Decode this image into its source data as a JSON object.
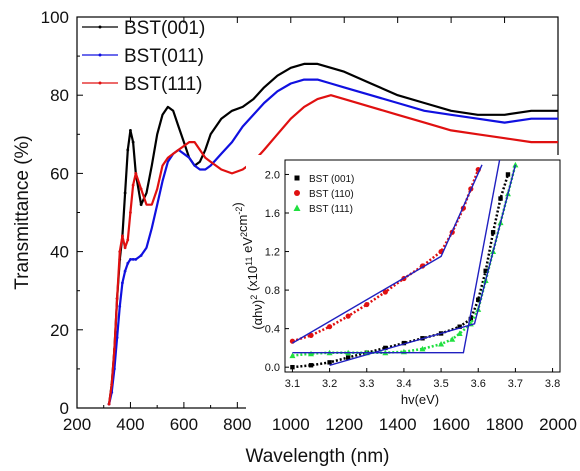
{
  "chart_data": [
    {
      "type": "line",
      "xlabel": "Wavelength (nm)",
      "ylabel": "Transmittance (%)",
      "xlim": [
        200,
        2000
      ],
      "ylim": [
        0,
        100
      ],
      "x_ticks": [
        200,
        400,
        600,
        800,
        1000,
        1200,
        1400,
        1600,
        1800,
        2000
      ],
      "y_ticks": [
        0,
        20,
        40,
        60,
        80,
        100
      ],
      "legend_position": "top-left",
      "series": [
        {
          "name": "BST(001)",
          "color": "#000000",
          "x": [
            320,
            330,
            340,
            350,
            360,
            370,
            380,
            390,
            400,
            410,
            420,
            440,
            460,
            480,
            500,
            520,
            540,
            560,
            580,
            600,
            620,
            640,
            660,
            680,
            700,
            740,
            780,
            820,
            860,
            900,
            950,
            1000,
            1050,
            1100,
            1150,
            1200,
            1300,
            1400,
            1500,
            1600,
            1700,
            1800,
            1900,
            2000
          ],
          "y": [
            1,
            6,
            15,
            28,
            38,
            44,
            55,
            66,
            71,
            68,
            60,
            52,
            55,
            62,
            70,
            75,
            77,
            76,
            72,
            68,
            64,
            62,
            63,
            66,
            70,
            74,
            76,
            77,
            79,
            82,
            85,
            87,
            88,
            88,
            87,
            86,
            83,
            80,
            78,
            76,
            75,
            75,
            76,
            76
          ]
        },
        {
          "name": "BST(011)",
          "color": "#1010e0",
          "x": [
            320,
            330,
            340,
            350,
            360,
            370,
            380,
            390,
            400,
            410,
            420,
            440,
            460,
            480,
            500,
            520,
            540,
            560,
            580,
            600,
            620,
            640,
            660,
            680,
            700,
            740,
            780,
            820,
            860,
            900,
            950,
            1000,
            1050,
            1100,
            1150,
            1200,
            1300,
            1400,
            1500,
            1600,
            1700,
            1800,
            1900,
            2000
          ],
          "y": [
            1,
            4,
            10,
            18,
            26,
            32,
            35,
            37,
            38,
            38,
            38,
            39,
            41,
            46,
            52,
            58,
            63,
            65,
            66,
            65,
            64,
            62,
            61,
            61,
            62,
            65,
            68,
            72,
            75,
            78,
            81,
            83,
            84,
            84,
            83,
            82,
            80,
            78,
            76,
            75,
            74,
            73,
            74,
            74
          ]
        },
        {
          "name": "BST(111)",
          "color": "#e01010",
          "x": [
            320,
            330,
            340,
            350,
            360,
            370,
            380,
            390,
            400,
            410,
            420,
            440,
            460,
            480,
            500,
            520,
            540,
            560,
            580,
            600,
            620,
            640,
            660,
            680,
            700,
            740,
            780,
            820,
            860,
            900,
            950,
            1000,
            1050,
            1100,
            1150,
            1200,
            1300,
            1400,
            1500,
            1600,
            1700,
            1800,
            1900,
            2000
          ],
          "y": [
            1,
            6,
            15,
            28,
            40,
            44,
            41,
            43,
            50,
            57,
            60,
            56,
            52,
            52,
            56,
            62,
            64,
            65,
            66,
            67,
            68,
            68,
            66,
            64,
            63,
            61,
            60,
            61,
            63,
            66,
            70,
            74,
            77,
            79,
            80,
            79,
            77,
            75,
            73,
            71,
            70,
            69,
            68,
            68
          ]
        }
      ]
    },
    {
      "type": "scatter",
      "xlabel": "hv(eV)",
      "ylabel": "(αhv)² (x10¹¹ eV² cm⁻²)",
      "ylabel_parts": {
        "base": "(αhν)",
        "sup1": "2",
        "mid1": " (x10",
        "sup2": "11",
        "mid2": " eV",
        "sup3": "2",
        "mid3": "cm",
        "sup4": "-2",
        "end": ")"
      },
      "xlim": [
        3.08,
        3.82
      ],
      "ylim": [
        -0.05,
        2.15
      ],
      "x_ticks": [
        "3.1",
        "3.2",
        "3.3",
        "3.4",
        "3.5",
        "3.6",
        "3.7",
        "3.8"
      ],
      "y_ticks": [
        "0.0",
        "0.4",
        "0.8",
        "1.2",
        "1.6",
        "2.0"
      ],
      "legend_position": "top-left",
      "series": [
        {
          "name": "BST (001)",
          "color": "#000000",
          "marker": "square",
          "x": [
            3.1,
            3.15,
            3.2,
            3.25,
            3.3,
            3.35,
            3.4,
            3.45,
            3.5,
            3.55,
            3.58,
            3.6,
            3.62,
            3.64,
            3.66,
            3.68
          ],
          "y": [
            0.0,
            0.02,
            0.05,
            0.1,
            0.15,
            0.2,
            0.25,
            0.3,
            0.35,
            0.42,
            0.5,
            0.7,
            1.0,
            1.4,
            1.75,
            2.0
          ]
        },
        {
          "name": "BST (110)",
          "color": "#e01010",
          "marker": "circle",
          "x": [
            3.1,
            3.15,
            3.2,
            3.25,
            3.3,
            3.35,
            3.4,
            3.45,
            3.5,
            3.53,
            3.56,
            3.58,
            3.6
          ],
          "y": [
            0.27,
            0.33,
            0.42,
            0.53,
            0.65,
            0.78,
            0.92,
            1.05,
            1.2,
            1.4,
            1.65,
            1.85,
            2.05
          ]
        },
        {
          "name": "BST (111)",
          "color": "#20e040",
          "marker": "triangle",
          "x": [
            3.1,
            3.15,
            3.2,
            3.25,
            3.3,
            3.35,
            3.4,
            3.45,
            3.5,
            3.53,
            3.55,
            3.58,
            3.6,
            3.62,
            3.64,
            3.66,
            3.68,
            3.7
          ],
          "y": [
            0.12,
            0.14,
            0.15,
            0.15,
            0.15,
            0.15,
            0.16,
            0.19,
            0.24,
            0.29,
            0.35,
            0.45,
            0.6,
            0.9,
            1.2,
            1.5,
            1.8,
            2.1
          ]
        }
      ],
      "fit_lines": [
        {
          "color": "#2020c0",
          "x": [
            3.1,
            3.5,
            3.61
          ],
          "y": [
            0.25,
            1.15,
            2.1
          ]
        },
        {
          "color": "#2020c0",
          "x": [
            3.1,
            3.56,
            3.66
          ],
          "y": [
            0.15,
            0.15,
            2.2
          ]
        },
        {
          "color": "#2020c0",
          "x": [
            3.2,
            3.59,
            3.7
          ],
          "y": [
            0.02,
            0.45,
            2.1
          ]
        }
      ]
    }
  ]
}
